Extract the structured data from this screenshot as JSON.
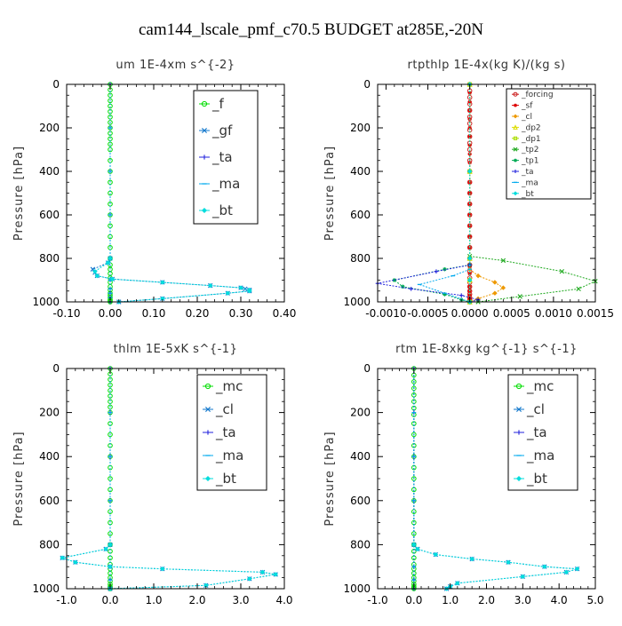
{
  "title": "cam144_lscale_pmf_c70.5  BUDGET at285E,-20N",
  "chart_data": [
    {
      "type": "line",
      "title": "um   1E-4xm s^{-2}",
      "ylabel": "Pressure [hPa]",
      "xlim": [
        -0.1,
        0.4
      ],
      "ylim": [
        1000,
        0
      ],
      "xticks": [
        -0.1,
        0.0,
        0.1,
        0.2,
        0.3,
        0.4
      ],
      "xtick_labels": [
        "-0.10",
        "0.00",
        "0.10",
        "0.20",
        "0.30",
        "0.40"
      ],
      "yticks": [
        0,
        200,
        400,
        600,
        800,
        1000
      ],
      "ytick_labels": [
        "0",
        "200",
        "400",
        "600",
        "800",
        "1000"
      ],
      "legend_location": "top-right",
      "series": [
        {
          "name": "_f",
          "color": "#00dd00",
          "marker": "circle",
          "x": [
            0,
            0,
            0,
            0,
            0,
            0,
            0,
            0,
            0,
            0,
            0,
            0,
            0,
            0,
            0,
            0,
            0,
            0,
            0,
            0,
            0,
            0,
            0,
            0,
            0,
            0,
            0,
            0,
            0,
            0,
            0,
            0,
            0,
            0,
            0,
            0
          ],
          "y": [
            0,
            25,
            50,
            75,
            100,
            125,
            150,
            175,
            200,
            225,
            250,
            275,
            300,
            350,
            400,
            450,
            500,
            550,
            600,
            650,
            700,
            750,
            800,
            830,
            850,
            870,
            890,
            910,
            930,
            945,
            960,
            970,
            980,
            990,
            995,
            1000
          ]
        },
        {
          "name": "_gf",
          "color": "#1177cc",
          "marker": "x",
          "x": [
            0,
            -0.005,
            -0.04,
            -0.035,
            -0.03,
            0.005,
            0.12,
            0.23,
            0.3,
            0.31,
            0.32,
            0.32,
            0.27,
            0.12,
            0.02
          ],
          "y": [
            800,
            820,
            850,
            865,
            880,
            895,
            910,
            925,
            935,
            940,
            945,
            950,
            960,
            985,
            1000
          ]
        },
        {
          "name": "_ta",
          "color": "#2222dd",
          "marker": "plus",
          "x": [
            0,
            0,
            0,
            0,
            0,
            0,
            0,
            0,
            0,
            0
          ],
          "y": [
            0,
            200,
            400,
            600,
            800,
            900,
            940,
            960,
            980,
            1000
          ]
        },
        {
          "name": "_ma",
          "color": "#00aaee",
          "marker": "dash",
          "x": [
            0,
            0,
            0,
            0,
            0,
            0,
            0,
            0,
            0,
            0
          ],
          "y": [
            0,
            200,
            400,
            600,
            800,
            900,
            940,
            960,
            980,
            1000
          ]
        },
        {
          "name": "_bt",
          "color": "#00dddd",
          "marker": "diamond",
          "x": [
            0,
            -0.005,
            -0.035,
            -0.03,
            0.005,
            0.12,
            0.23,
            0.3,
            0.32,
            0.32,
            0.27,
            0.12,
            0.02
          ],
          "y": [
            800,
            820,
            860,
            880,
            895,
            910,
            925,
            935,
            945,
            950,
            960,
            985,
            1000
          ]
        }
      ]
    },
    {
      "type": "line",
      "title": "rtpthlp   1E-4x(kg K)/(kg s)",
      "ylabel": "Pressure [hPa]",
      "xlim": [
        -0.0011,
        0.0015
      ],
      "ylim": [
        1000,
        0
      ],
      "xticks": [
        -0.001,
        -0.0005,
        0.0,
        0.0005,
        0.001,
        0.0015
      ],
      "xtick_labels": [
        "-0.0010",
        "-0.0005",
        "0.0000",
        "0.0005",
        "0.0010",
        "0.0015"
      ],
      "yticks": [
        0,
        200,
        400,
        600,
        800,
        1000
      ],
      "ytick_labels": [
        "0",
        "200",
        "400",
        "600",
        "800",
        "1000"
      ],
      "legend_location": "top-right",
      "series": [
        {
          "name": "_forcing",
          "color": "#cc2222",
          "marker": "circle",
          "x": [
            0,
            0,
            0,
            0,
            0,
            0,
            0,
            0,
            0,
            0,
            0,
            0,
            0,
            0,
            0,
            0,
            0,
            0,
            0,
            0,
            0,
            0,
            0,
            0,
            0,
            0,
            0,
            0,
            0,
            0,
            0
          ],
          "y": [
            0,
            30,
            60,
            90,
            120,
            150,
            180,
            210,
            240,
            270,
            300,
            350,
            400,
            450,
            500,
            550,
            600,
            650,
            700,
            750,
            800,
            830,
            860,
            890,
            910,
            930,
            950,
            965,
            980,
            990,
            1000
          ]
        },
        {
          "name": "_sf",
          "color": "#dd0000",
          "marker": "star",
          "x": [
            0,
            0,
            0,
            0,
            0,
            0,
            0,
            0,
            0,
            0,
            0,
            0,
            0,
            0,
            0,
            0,
            0,
            0,
            0,
            0,
            0,
            0,
            0,
            0,
            0,
            0,
            0,
            0
          ],
          "y": [
            0,
            40,
            80,
            120,
            160,
            200,
            240,
            280,
            320,
            360,
            400,
            450,
            500,
            550,
            600,
            650,
            700,
            750,
            800,
            840,
            870,
            900,
            930,
            950,
            970,
            985,
            995,
            1000
          ]
        },
        {
          "name": "_cl",
          "color": "#ee9900",
          "marker": "diamond",
          "x": [
            0,
            0.0001,
            0.0003,
            0.0004,
            0.0003,
            0.0001,
            0
          ],
          "y": [
            850,
            880,
            910,
            935,
            960,
            985,
            1000
          ]
        },
        {
          "name": "_dp2",
          "color": "#dddd00",
          "marker": "triangle",
          "x": [
            0,
            0,
            0,
            0,
            0
          ],
          "y": [
            0,
            400,
            800,
            900,
            1000
          ]
        },
        {
          "name": "_dp1",
          "color": "#aadd00",
          "marker": "square",
          "x": [
            0,
            0,
            0,
            0,
            0
          ],
          "y": [
            0,
            400,
            800,
            900,
            1000
          ]
        },
        {
          "name": "_tp2",
          "color": "#22aa22",
          "marker": "x",
          "x": [
            0,
            0.0004,
            0.0011,
            0.0015,
            0.0013,
            0.0006,
            0.0001
          ],
          "y": [
            790,
            810,
            860,
            905,
            940,
            975,
            1000
          ]
        },
        {
          "name": "_tp1",
          "color": "#00aa55",
          "marker": "star",
          "x": [
            0,
            -0.0003,
            -0.0009,
            -0.0008,
            -0.0003,
            -0.0001,
            0
          ],
          "y": [
            830,
            850,
            900,
            930,
            965,
            990,
            1000
          ]
        },
        {
          "name": "_ta",
          "color": "#2222dd",
          "marker": "plus",
          "x": [
            0,
            -0.0004,
            -0.0011,
            -0.0007,
            -0.0001,
            0.0001,
            0
          ],
          "y": [
            830,
            860,
            915,
            940,
            970,
            990,
            1000
          ]
        },
        {
          "name": "_ma",
          "color": "#00aaee",
          "marker": "dash",
          "x": [
            0,
            -0.0002,
            -0.0006,
            -0.0003,
            0
          ],
          "y": [
            850,
            880,
            920,
            960,
            1000
          ]
        },
        {
          "name": "_bt",
          "color": "#00dddd",
          "marker": "diamond",
          "x": [
            0,
            0,
            0,
            0,
            0
          ],
          "y": [
            0,
            400,
            800,
            900,
            1000
          ]
        }
      ]
    },
    {
      "type": "line",
      "title": "thlm   1E-5xK s^{-1}",
      "ylabel": "Pressure [hPa]",
      "xlim": [
        -1.0,
        4.0
      ],
      "ylim": [
        1000,
        0
      ],
      "xticks": [
        -1.0,
        0.0,
        1.0,
        2.0,
        3.0,
        4.0
      ],
      "xtick_labels": [
        "-1.0",
        "0.0",
        "1.0",
        "2.0",
        "3.0",
        "4.0"
      ],
      "yticks": [
        0,
        200,
        400,
        600,
        800,
        1000
      ],
      "ytick_labels": [
        "0",
        "200",
        "400",
        "600",
        "800",
        "1000"
      ],
      "legend_location": "top-right",
      "series": [
        {
          "name": "_mc",
          "color": "#00dd00",
          "marker": "circle",
          "x": [
            0,
            0,
            0,
            0,
            0,
            0,
            0,
            0,
            0,
            0,
            0,
            0,
            0,
            0,
            0,
            0,
            0,
            0,
            0,
            0,
            0,
            0,
            0,
            0,
            0,
            0,
            0,
            0,
            0,
            0,
            0,
            0
          ],
          "y": [
            0,
            25,
            50,
            75,
            100,
            125,
            150,
            175,
            200,
            250,
            300,
            350,
            400,
            450,
            500,
            550,
            600,
            650,
            700,
            750,
            800,
            830,
            860,
            890,
            910,
            930,
            950,
            965,
            980,
            990,
            995,
            1000
          ]
        },
        {
          "name": "_cl",
          "color": "#1177cc",
          "marker": "x",
          "x": [
            0,
            -0.1,
            -1.1,
            -0.8,
            0,
            1.2,
            3.5,
            3.8,
            3.2,
            2.2,
            0
          ],
          "y": [
            800,
            820,
            860,
            880,
            900,
            910,
            925,
            935,
            955,
            985,
            1000
          ]
        },
        {
          "name": "_ta",
          "color": "#2222dd",
          "marker": "plus",
          "x": [
            0,
            0,
            0,
            0,
            0,
            0,
            0,
            0
          ],
          "y": [
            0,
            200,
            400,
            600,
            800,
            900,
            960,
            1000
          ]
        },
        {
          "name": "_ma",
          "color": "#00aaee",
          "marker": "dash",
          "x": [
            0,
            0,
            0,
            0,
            0,
            0,
            0,
            0
          ],
          "y": [
            0,
            200,
            400,
            600,
            800,
            900,
            960,
            1000
          ]
        },
        {
          "name": "_bt",
          "color": "#00dddd",
          "marker": "diamond",
          "x": [
            0,
            -0.1,
            -1.1,
            -0.8,
            0,
            1.2,
            3.5,
            3.8,
            3.2,
            2.2,
            0
          ],
          "y": [
            800,
            820,
            860,
            880,
            900,
            910,
            925,
            935,
            955,
            985,
            1000
          ]
        }
      ]
    },
    {
      "type": "line",
      "title": "rtm   1E-8xkg kg^{-1} s^{-1}",
      "ylabel": "Pressure [hPa]",
      "xlim": [
        -1.0,
        5.0
      ],
      "ylim": [
        1000,
        0
      ],
      "xticks": [
        -1.0,
        0.0,
        1.0,
        2.0,
        3.0,
        4.0,
        5.0
      ],
      "xtick_labels": [
        "-1.0",
        "0.0",
        "1.0",
        "2.0",
        "3.0",
        "4.0",
        "5.0"
      ],
      "yticks": [
        0,
        200,
        400,
        600,
        800,
        1000
      ],
      "ytick_labels": [
        "0",
        "200",
        "400",
        "600",
        "800",
        "1000"
      ],
      "legend_location": "top-right",
      "series": [
        {
          "name": "_mc",
          "color": "#00dd00",
          "marker": "circle",
          "x": [
            0,
            0,
            0,
            0,
            0,
            0,
            0,
            0,
            0,
            0,
            0,
            0,
            0,
            0,
            0,
            0,
            0,
            0,
            0,
            0,
            0,
            0,
            0,
            0,
            0,
            0,
            0,
            0,
            0,
            0,
            0
          ],
          "y": [
            0,
            30,
            60,
            90,
            120,
            150,
            180,
            210,
            250,
            300,
            350,
            400,
            450,
            500,
            550,
            600,
            650,
            700,
            750,
            800,
            830,
            860,
            890,
            910,
            930,
            950,
            965,
            980,
            990,
            995,
            1000
          ]
        },
        {
          "name": "_cl",
          "color": "#1177cc",
          "marker": "x",
          "x": [
            0,
            0.1,
            0.6,
            1.6,
            2.6,
            3.6,
            4.5,
            4.2,
            3.0,
            1.2,
            1.0,
            0.9
          ],
          "y": [
            800,
            820,
            845,
            865,
            880,
            900,
            910,
            925,
            945,
            975,
            990,
            1000
          ]
        },
        {
          "name": "_ta",
          "color": "#2222dd",
          "marker": "plus",
          "x": [
            0,
            0,
            0,
            0,
            0,
            0,
            0,
            0
          ],
          "y": [
            0,
            200,
            400,
            600,
            800,
            900,
            960,
            1000
          ]
        },
        {
          "name": "_ma",
          "color": "#00aaee",
          "marker": "dash",
          "x": [
            0,
            0,
            0,
            0,
            0,
            0,
            0,
            0
          ],
          "y": [
            0,
            200,
            400,
            600,
            800,
            900,
            960,
            1000
          ]
        },
        {
          "name": "_bt",
          "color": "#00dddd",
          "marker": "diamond",
          "x": [
            0,
            0.1,
            0.6,
            1.6,
            2.6,
            3.6,
            4.5,
            4.2,
            3.0,
            1.2,
            1.0,
            0.9
          ],
          "y": [
            800,
            820,
            845,
            865,
            880,
            900,
            910,
            925,
            945,
            975,
            990,
            1000
          ]
        }
      ]
    }
  ]
}
